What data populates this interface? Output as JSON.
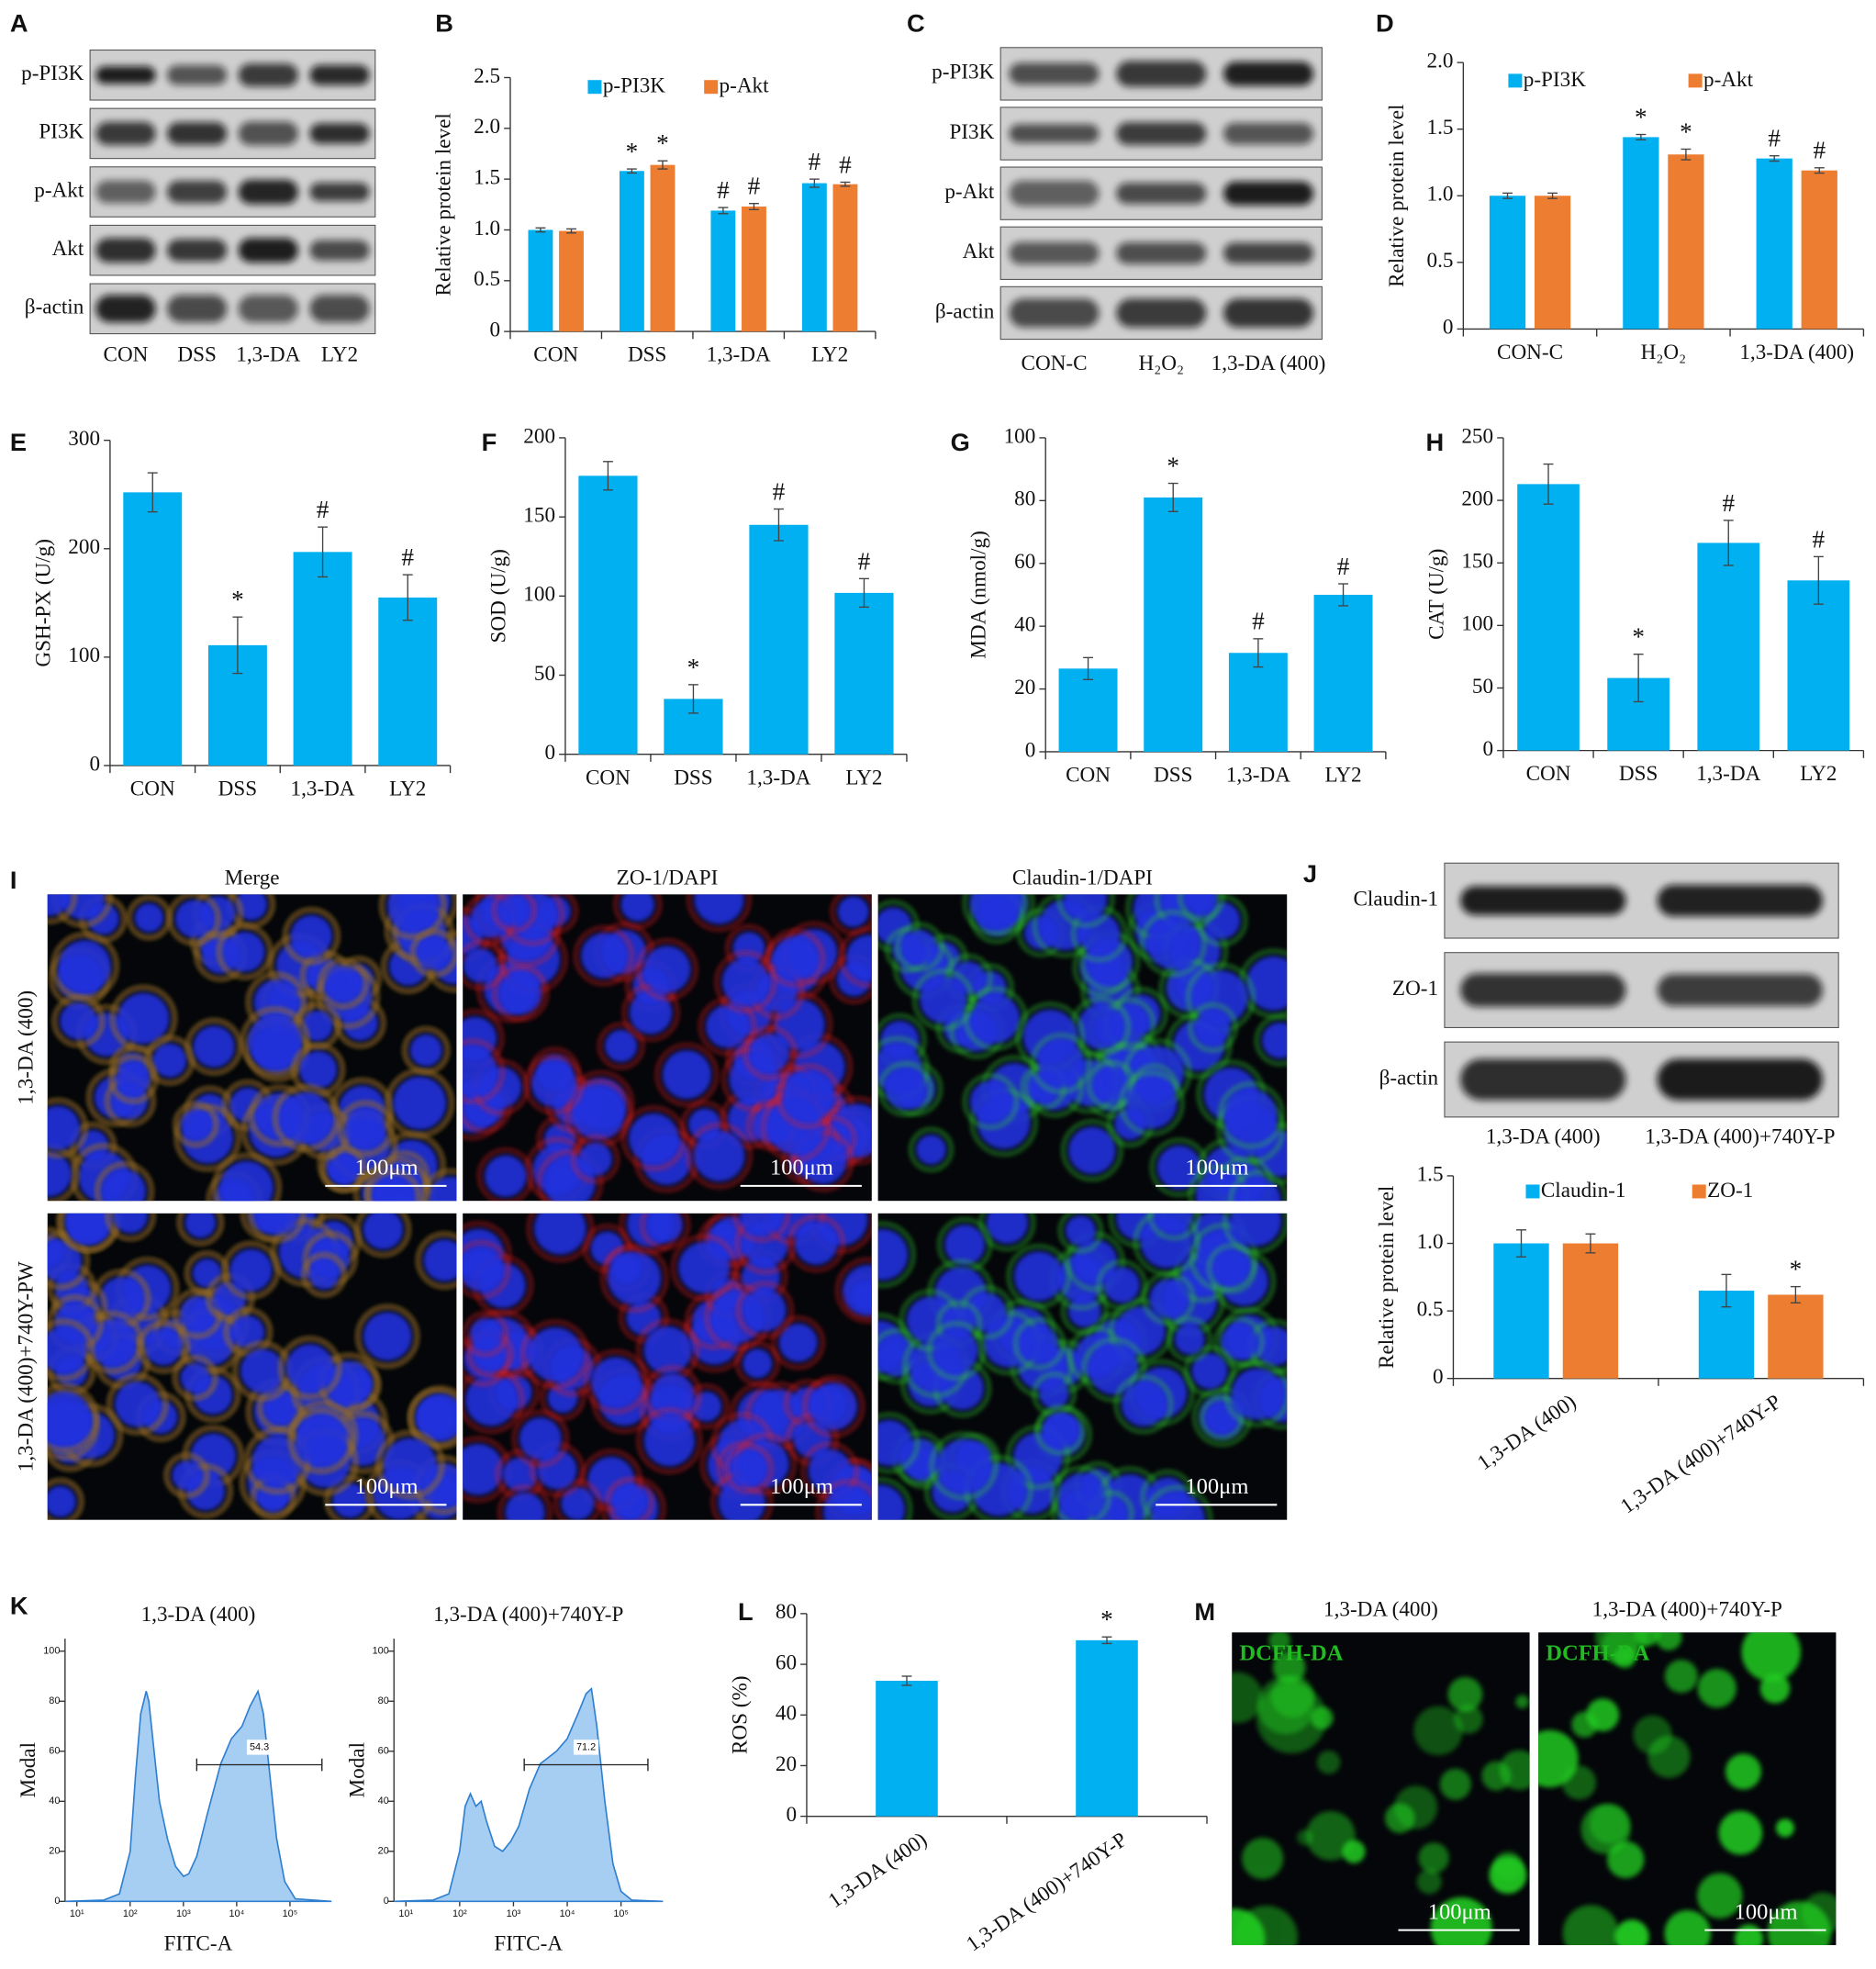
{
  "blots": [
    {
      "panel": "A",
      "rows": [
        "p-PI3K",
        "PI3K",
        "p-Akt",
        "Akt",
        "β-actin"
      ],
      "lanes": [
        "CON",
        "DSS",
        "1,3-DA",
        "LY2"
      ]
    },
    {
      "panel": "C",
      "rows": [
        "p-PI3K",
        "PI3K",
        "p-Akt",
        "Akt",
        "β-actin"
      ],
      "lanes": [
        "CON-C",
        "H₂O₂",
        "1,3-DA (400)"
      ]
    },
    {
      "panel": "J",
      "rows": [
        "Claudin-1",
        "ZO-1",
        "β-actin"
      ],
      "lanes": [
        "1,3-DA (400)",
        "1,3-DA (400)+740Y-P"
      ]
    }
  ],
  "micrographs": [
    {
      "panel": "I",
      "columns": [
        "Merge",
        "ZO-1/DAPI",
        "Claudin-1/DAPI"
      ],
      "rows": [
        "1,3-DA (400)",
        "1,3-DA (400)+740Y-PW"
      ],
      "scale_bar": "100μm"
    },
    {
      "panel": "M",
      "columns": [
        "1,3-DA (400)",
        "1,3-DA (400)+740Y-P"
      ],
      "stain": "DCFH-DA",
      "scale_bar": "100μm"
    }
  ],
  "chart_data": [
    {
      "type": "bar",
      "panel": "B",
      "y_label": "Relative protein level",
      "categories": [
        "CON",
        "DSS",
        "1,3-DA",
        "LY2"
      ],
      "series": [
        {
          "name": "p-PI3K",
          "color": "#00b0f0",
          "values": [
            1.0,
            1.58,
            1.19,
            1.46
          ],
          "errors": [
            0.02,
            0.02,
            0.03,
            0.04
          ],
          "markers": [
            null,
            "*",
            "#",
            "#"
          ]
        },
        {
          "name": "p-Akt",
          "color": "#ed7d31",
          "values": [
            0.99,
            1.64,
            1.23,
            1.45
          ],
          "errors": [
            0.02,
            0.04,
            0.03,
            0.02
          ],
          "markers": [
            null,
            "*",
            "#",
            "#"
          ]
        }
      ],
      "ylim": [
        0,
        2.5
      ],
      "yticks": [
        0,
        0.5,
        {
          "value": 1,
          "label": "1.0"
        },
        1.5,
        {
          "value": 2,
          "label": "2.0"
        },
        2.5
      ]
    },
    {
      "type": "bar",
      "panel": "D",
      "y_label": "Relative protein level",
      "categories": [
        "CON-C",
        "H₂O₂",
        "1,3-DA (400)"
      ],
      "series": [
        {
          "name": "p-PI3K",
          "color": "#00b0f0",
          "values": [
            1.0,
            1.44,
            1.28
          ],
          "errors": [
            0.02,
            0.02,
            0.02
          ],
          "markers": [
            null,
            "*",
            "#"
          ]
        },
        {
          "name": "p-Akt",
          "color": "#ed7d31",
          "values": [
            1.0,
            1.31,
            1.19
          ],
          "errors": [
            0.02,
            0.04,
            0.02
          ],
          "markers": [
            null,
            "*",
            "#"
          ]
        }
      ],
      "ylim": [
        0,
        2
      ],
      "yticks": [
        0,
        0.5,
        {
          "value": 1,
          "label": "1.0"
        },
        1.5,
        {
          "value": 2,
          "label": "2.0"
        }
      ]
    },
    {
      "type": "bar",
      "panel": "E",
      "y_label": "GSH-PX (U/g)",
      "categories": [
        "CON",
        "DSS",
        "1,3-DA",
        "LY2"
      ],
      "color": "#00b0f0",
      "values": [
        252,
        111,
        197,
        155
      ],
      "errors": [
        18,
        26,
        23,
        21
      ],
      "markers": [
        null,
        "*",
        "#",
        "#"
      ],
      "ylim": [
        0,
        300
      ],
      "yticks": [
        0,
        100,
        200,
        300
      ]
    },
    {
      "type": "bar",
      "panel": "F",
      "y_label": "SOD (U/g)",
      "categories": [
        "CON",
        "DSS",
        "1,3-DA",
        "LY2"
      ],
      "color": "#00b0f0",
      "values": [
        176,
        35,
        145,
        102
      ],
      "errors": [
        9,
        9,
        10,
        9
      ],
      "markers": [
        null,
        "*",
        "#",
        "#"
      ],
      "ylim": [
        0,
        200
      ],
      "yticks": [
        0,
        50,
        100,
        150,
        200
      ]
    },
    {
      "type": "bar",
      "panel": "G",
      "y_label": "MDA (nmol/g)",
      "categories": [
        "CON",
        "DSS",
        "1,3-DA",
        "LY2"
      ],
      "color": "#00b0f0",
      "values": [
        26.5,
        81,
        31.5,
        50
      ],
      "errors": [
        3.5,
        4.5,
        4.5,
        3.5
      ],
      "markers": [
        null,
        "*",
        "#",
        "#"
      ],
      "ylim": [
        0,
        100
      ],
      "yticks": [
        0,
        20,
        40,
        60,
        80,
        100
      ]
    },
    {
      "type": "bar",
      "panel": "H",
      "y_label": "CAT (U/g)",
      "categories": [
        "CON",
        "DSS",
        "1,3-DA",
        "LY2"
      ],
      "color": "#00b0f0",
      "values": [
        213,
        58,
        166,
        136
      ],
      "errors": [
        16,
        19,
        18,
        19
      ],
      "markers": [
        null,
        "*",
        "#",
        "#"
      ],
      "ylim": [
        0,
        250
      ],
      "yticks": [
        0,
        50,
        100,
        150,
        200,
        250
      ]
    },
    {
      "type": "bar",
      "y_label": "Relative protein level",
      "categories": [
        "1,3-DA (400)",
        "1,3-DA (400)+740Y-P"
      ],
      "series": [
        {
          "name": "Claudin-1",
          "color": "#00b0f0",
          "values": [
            1.0,
            0.65
          ],
          "errors": [
            0.1,
            0.12
          ],
          "markers": [
            null,
            null
          ]
        },
        {
          "name": "ZO-1",
          "color": "#ed7d31",
          "values": [
            1.0,
            0.62
          ],
          "errors": [
            0.07,
            0.06
          ],
          "markers": [
            null,
            "*"
          ]
        }
      ],
      "ylim": [
        0,
        1.5
      ],
      "yticks": [
        0,
        0.5,
        {
          "value": 1,
          "label": "1.0"
        },
        1.5
      ]
    },
    {
      "type": "area",
      "panel": "K",
      "title": "1,3-DA (400)",
      "x_label": "FITC-A",
      "y_label": "Modal",
      "color": "#a6cdf2",
      "log_x": true,
      "x": [
        6,
        32,
        63,
        100,
        126,
        158,
        200,
        224,
        282,
        355,
        501,
        708,
        1000,
        1259,
        1778,
        2818,
        5012,
        7943,
        12589,
        17783,
        25119,
        31623,
        39811,
        56234,
        79433,
        125893,
        600000
      ],
      "values": [
        0,
        0.5,
        3,
        20,
        50,
        75,
        84,
        80,
        60,
        40,
        25,
        14,
        10,
        11,
        18,
        35,
        55,
        65,
        70,
        78,
        84,
        75,
        55,
        25,
        8,
        1,
        0
      ],
      "gate": [
        1778,
        398107
      ],
      "gate_value": 54.3,
      "xlim": [
        6,
        600000
      ],
      "xticks": [
        {
          "value": 10,
          "label": "10¹"
        },
        {
          "value": 100,
          "label": "10²"
        },
        {
          "value": 1000,
          "label": "10³"
        },
        {
          "value": 10000,
          "label": "10⁴"
        },
        {
          "value": 100000,
          "label": "10⁵"
        }
      ],
      "ylim": [
        0,
        105
      ],
      "yticks": [
        0,
        20,
        40,
        60,
        80,
        100
      ]
    },
    {
      "type": "area",
      "title": "1,3-DA (400)+740Y-P",
      "x_label": "FITC-A",
      "y_label": "Modal",
      "color": "#a6cdf2",
      "log_x": true,
      "x": [
        6,
        32,
        63,
        100,
        126,
        158,
        200,
        251,
        316,
        447,
        631,
        891,
        1259,
        1995,
        3162,
        6310,
        10000,
        15849,
        22387,
        28184,
        35481,
        50119,
        70795,
        100000,
        158489,
        600000
      ],
      "values": [
        0,
        0.5,
        3,
        20,
        38,
        43,
        38,
        40,
        32,
        22,
        20,
        24,
        30,
        45,
        55,
        60,
        65,
        75,
        83,
        85,
        70,
        40,
        15,
        4,
        0.5,
        0
      ],
      "gate": [
        1585,
        316228
      ],
      "gate_value": 71.2,
      "xlim": [
        6,
        600000
      ],
      "xticks": [
        {
          "value": 10,
          "label": "10¹"
        },
        {
          "value": 100,
          "label": "10²"
        },
        {
          "value": 1000,
          "label": "10³"
        },
        {
          "value": 10000,
          "label": "10⁴"
        },
        {
          "value": 100000,
          "label": "10⁵"
        }
      ],
      "ylim": [
        0,
        105
      ],
      "yticks": [
        0,
        20,
        40,
        60,
        80,
        100
      ]
    },
    {
      "type": "bar",
      "panel": "L",
      "y_label": "ROS (%)",
      "categories": [
        "1,3-DA (400)",
        "1,3-DA (400)+740Y-P"
      ],
      "color": "#00b0f0",
      "values": [
        53.5,
        69.5
      ],
      "errors": [
        1.8,
        1.3
      ],
      "markers": [
        null,
        "*"
      ],
      "ylim": [
        0,
        80
      ],
      "yticks": [
        0,
        20,
        40,
        60,
        80
      ]
    }
  ]
}
